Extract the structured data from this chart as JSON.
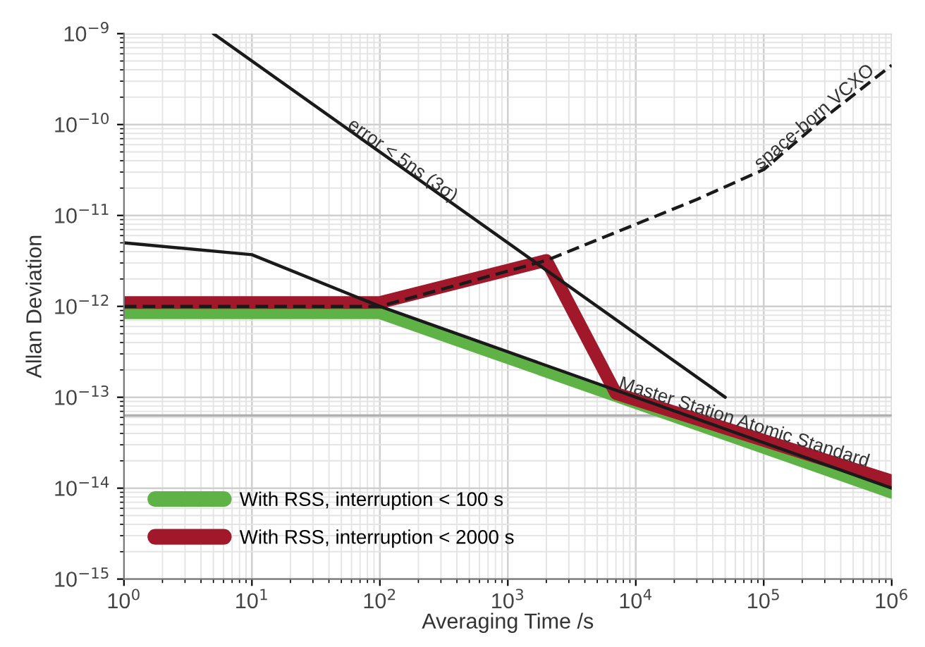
{
  "chart_data": {
    "type": "line",
    "xlabel": "Averaging Time /s",
    "ylabel": "Allan Deviation",
    "log": "xy",
    "xlim": [
      1,
      1000000
    ],
    "ylim": [
      1e-15,
      1e-09
    ],
    "xticks": [
      {
        "value": 1,
        "label": "10$^{0}$"
      },
      {
        "value": 10,
        "label": "10$^{1}$"
      },
      {
        "value": 100,
        "label": "10$^{2}$"
      },
      {
        "value": 1000,
        "label": "10$^{3}$"
      },
      {
        "value": 10000,
        "label": "10$^{4}$"
      },
      {
        "value": 100000,
        "label": "10$^{5}$"
      },
      {
        "value": 1000000,
        "label": "10$^{6}$"
      }
    ],
    "yticks": [
      {
        "value": 1e-15,
        "label": "10$^{−15}$"
      },
      {
        "value": 1e-14,
        "label": "10$^{−14}$"
      },
      {
        "value": 1e-13,
        "label": "10$^{−13}$"
      },
      {
        "value": 1e-12,
        "label": "10$^{−12}$"
      },
      {
        "value": 1e-11,
        "label": "10$^{−11}$"
      },
      {
        "value": 1e-10,
        "label": "10$^{−10}$"
      },
      {
        "value": 1e-09,
        "label": "10$^{−9}$"
      }
    ],
    "grid": true,
    "legend": "bottom left",
    "series": [
      {
        "name": "With RSS, interruption < 100 s",
        "color": "#5fb346",
        "x": [
          1,
          100,
          1000000
        ],
        "values": [
          8.5e-13,
          8.5e-13,
          9e-15
        ]
      },
      {
        "name": "With RSS, interruption < 2000 s",
        "color": "#a0182a",
        "x": [
          1,
          100,
          2000,
          7000,
          1000000
        ],
        "values": [
          1.1e-12,
          1.1e-12,
          3.2e-12,
          1.1e-13,
          1.2e-14
        ]
      },
      {
        "color": "#1a1a1a",
        "x": [
          1,
          10,
          100,
          1000000
        ],
        "values": [
          5e-12,
          3.7e-12,
          1e-12,
          1e-14
        ]
      },
      {
        "color": "#1a1a1a",
        "x": [
          5,
          50000
        ],
        "values": [
          1e-09,
          1e-13
        ]
      },
      {
        "color": "#1a1a1a",
        "line_style": "dashed",
        "x": [
          1,
          100,
          2000,
          10000,
          30000,
          100000,
          300000,
          1000000
        ],
        "values": [
          1e-12,
          1e-12,
          3.2e-12,
          8e-12,
          1.5e-11,
          3.2e-11,
          1.2e-10,
          4.5e-10
        ]
      }
    ],
    "ref_lines": [
      {
        "axis": "y",
        "value": 6.3e-14,
        "color": "#b0b0b0"
      }
    ],
    "annotations": [
      {
        "text": "error < 5ns (3σ)",
        "x": 150,
        "y": 4e-11
      },
      {
        "text": "space-born VCXO",
        "x": 250000,
        "y": 1.2e-10
      },
      {
        "text": "Master Station Atomic Standard",
        "x": 70000,
        "y": 5.2e-14
      }
    ]
  }
}
